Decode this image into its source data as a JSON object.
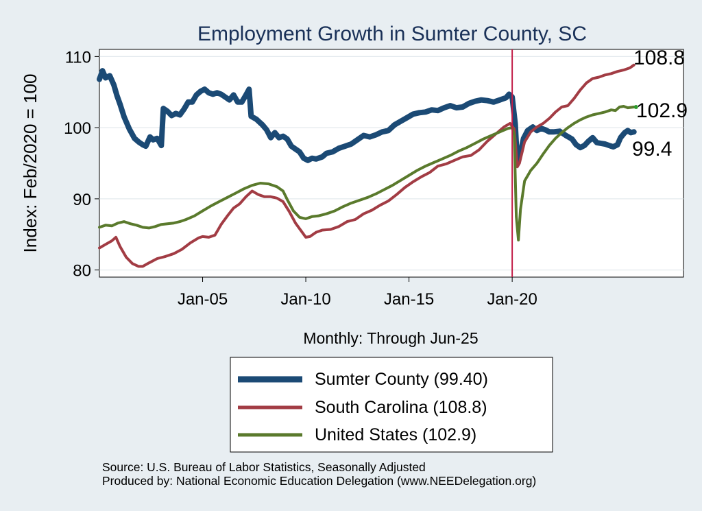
{
  "chart_data": {
    "type": "line",
    "title": "Employment Growth in Sumter  County, SC",
    "ylabel": "Index: Feb/2020 = 100",
    "xlabel": "Monthly: Through Jun-25",
    "ylim": [
      79,
      111
    ],
    "xlim": [
      2000.0,
      2028.3
    ],
    "yticks": [
      80,
      90,
      100,
      110
    ],
    "xticks": [
      {
        "label": "Jan-05",
        "value": 2005.0
      },
      {
        "label": "Jan-10",
        "value": 2010.0
      },
      {
        "label": "Jan-15",
        "value": 2015.0
      },
      {
        "label": "Jan-20",
        "value": 2020.0
      }
    ],
    "vline": 2020.0,
    "grid": true,
    "legend_position": "bottom",
    "end_labels": [
      "108.8",
      "102.9",
      "99.4"
    ],
    "series": [
      {
        "name": "Sumter  County (99.40)",
        "color": "#1b4a75",
        "width": 8,
        "points": [
          [
            2000.0,
            106.8
          ],
          [
            2000.15,
            108.0
          ],
          [
            2000.3,
            107.0
          ],
          [
            2000.5,
            107.3
          ],
          [
            2000.7,
            106.0
          ],
          [
            2000.85,
            104.5
          ],
          [
            2001.0,
            103.3
          ],
          [
            2001.2,
            101.5
          ],
          [
            2001.45,
            99.8
          ],
          [
            2001.7,
            98.5
          ],
          [
            2001.9,
            98.0
          ],
          [
            2002.1,
            97.6
          ],
          [
            2002.25,
            97.4
          ],
          [
            2002.45,
            98.7
          ],
          [
            2002.6,
            98.3
          ],
          [
            2002.8,
            98.5
          ],
          [
            2003.0,
            97.5
          ],
          [
            2003.1,
            102.7
          ],
          [
            2003.3,
            102.3
          ],
          [
            2003.5,
            101.7
          ],
          [
            2003.7,
            102.0
          ],
          [
            2003.9,
            101.8
          ],
          [
            2004.1,
            102.6
          ],
          [
            2004.3,
            103.6
          ],
          [
            2004.5,
            103.6
          ],
          [
            2004.7,
            104.6
          ],
          [
            2004.9,
            105.1
          ],
          [
            2005.1,
            105.4
          ],
          [
            2005.3,
            104.9
          ],
          [
            2005.5,
            104.7
          ],
          [
            2005.7,
            104.9
          ],
          [
            2005.9,
            104.7
          ],
          [
            2006.1,
            104.3
          ],
          [
            2006.3,
            103.9
          ],
          [
            2006.5,
            104.6
          ],
          [
            2006.7,
            103.6
          ],
          [
            2006.9,
            103.6
          ],
          [
            2007.1,
            104.6
          ],
          [
            2007.25,
            105.4
          ],
          [
            2007.35,
            101.6
          ],
          [
            2007.6,
            101.2
          ],
          [
            2007.9,
            100.4
          ],
          [
            2008.1,
            99.7
          ],
          [
            2008.3,
            98.6
          ],
          [
            2008.5,
            99.3
          ],
          [
            2008.7,
            98.6
          ],
          [
            2008.9,
            98.8
          ],
          [
            2009.1,
            98.4
          ],
          [
            2009.3,
            97.4
          ],
          [
            2009.5,
            97.0
          ],
          [
            2009.7,
            96.6
          ],
          [
            2009.9,
            95.7
          ],
          [
            2010.1,
            95.4
          ],
          [
            2010.3,
            95.7
          ],
          [
            2010.5,
            95.6
          ],
          [
            2010.8,
            95.9
          ],
          [
            2011.0,
            96.4
          ],
          [
            2011.3,
            96.6
          ],
          [
            2011.6,
            97.1
          ],
          [
            2011.9,
            97.4
          ],
          [
            2012.2,
            97.7
          ],
          [
            2012.5,
            98.3
          ],
          [
            2012.8,
            98.9
          ],
          [
            2013.1,
            98.7
          ],
          [
            2013.4,
            99.0
          ],
          [
            2013.7,
            99.4
          ],
          [
            2014.0,
            99.6
          ],
          [
            2014.3,
            100.4
          ],
          [
            2014.6,
            100.9
          ],
          [
            2014.9,
            101.4
          ],
          [
            2015.2,
            101.9
          ],
          [
            2015.5,
            102.1
          ],
          [
            2015.8,
            102.2
          ],
          [
            2016.1,
            102.5
          ],
          [
            2016.4,
            102.4
          ],
          [
            2016.7,
            102.8
          ],
          [
            2017.0,
            103.1
          ],
          [
            2017.3,
            102.8
          ],
          [
            2017.6,
            102.9
          ],
          [
            2017.9,
            103.4
          ],
          [
            2018.2,
            103.7
          ],
          [
            2018.5,
            103.9
          ],
          [
            2018.8,
            103.8
          ],
          [
            2019.1,
            103.6
          ],
          [
            2019.4,
            103.9
          ],
          [
            2019.7,
            104.2
          ],
          [
            2019.85,
            104.7
          ],
          [
            2020.0,
            104.3
          ],
          [
            2020.15,
            100.5
          ],
          [
            2020.25,
            95.0
          ],
          [
            2020.4,
            96.5
          ],
          [
            2020.55,
            98.5
          ],
          [
            2020.75,
            99.6
          ],
          [
            2021.0,
            100.1
          ],
          [
            2021.2,
            99.6
          ],
          [
            2021.4,
            99.9
          ],
          [
            2021.6,
            99.7
          ],
          [
            2021.8,
            99.4
          ],
          [
            2022.0,
            99.4
          ],
          [
            2022.3,
            99.5
          ],
          [
            2022.6,
            98.9
          ],
          [
            2022.9,
            98.4
          ],
          [
            2023.1,
            97.6
          ],
          [
            2023.3,
            97.2
          ],
          [
            2023.5,
            97.5
          ],
          [
            2023.7,
            98.1
          ],
          [
            2023.9,
            98.6
          ],
          [
            2024.1,
            97.9
          ],
          [
            2024.3,
            97.8
          ],
          [
            2024.5,
            97.7
          ],
          [
            2024.7,
            97.5
          ],
          [
            2024.9,
            97.3
          ],
          [
            2025.1,
            97.6
          ],
          [
            2025.25,
            98.6
          ],
          [
            2025.45,
            99.3
          ],
          [
            2025.6,
            99.6
          ],
          [
            2025.75,
            99.3
          ],
          [
            2025.9,
            99.4
          ]
        ]
      },
      {
        "name": "South Carolina (108.8)",
        "color": "#a23c44",
        "width": 4,
        "points": [
          [
            2000.0,
            83.1
          ],
          [
            2000.3,
            83.6
          ],
          [
            2000.6,
            84.1
          ],
          [
            2000.8,
            84.6
          ],
          [
            2001.0,
            83.3
          ],
          [
            2001.3,
            81.8
          ],
          [
            2001.6,
            80.9
          ],
          [
            2001.9,
            80.5
          ],
          [
            2002.1,
            80.5
          ],
          [
            2002.4,
            81.0
          ],
          [
            2002.8,
            81.6
          ],
          [
            2003.2,
            81.9
          ],
          [
            2003.6,
            82.3
          ],
          [
            2004.0,
            82.9
          ],
          [
            2004.4,
            83.8
          ],
          [
            2004.8,
            84.5
          ],
          [
            2005.0,
            84.7
          ],
          [
            2005.3,
            84.6
          ],
          [
            2005.6,
            84.9
          ],
          [
            2005.9,
            86.4
          ],
          [
            2006.2,
            87.6
          ],
          [
            2006.5,
            88.7
          ],
          [
            2006.8,
            89.3
          ],
          [
            2007.1,
            90.3
          ],
          [
            2007.4,
            91.1
          ],
          [
            2007.7,
            90.6
          ],
          [
            2008.0,
            90.3
          ],
          [
            2008.3,
            90.3
          ],
          [
            2008.6,
            90.1
          ],
          [
            2008.9,
            89.6
          ],
          [
            2009.2,
            88.2
          ],
          [
            2009.5,
            86.6
          ],
          [
            2009.8,
            85.4
          ],
          [
            2010.0,
            84.6
          ],
          [
            2010.2,
            84.7
          ],
          [
            2010.5,
            85.3
          ],
          [
            2010.8,
            85.6
          ],
          [
            2011.2,
            85.7
          ],
          [
            2011.6,
            86.1
          ],
          [
            2012.0,
            86.8
          ],
          [
            2012.4,
            87.1
          ],
          [
            2012.8,
            87.9
          ],
          [
            2013.2,
            88.4
          ],
          [
            2013.6,
            89.1
          ],
          [
            2014.0,
            89.7
          ],
          [
            2014.4,
            90.6
          ],
          [
            2014.8,
            91.6
          ],
          [
            2015.2,
            92.4
          ],
          [
            2015.6,
            93.1
          ],
          [
            2016.0,
            93.7
          ],
          [
            2016.4,
            94.6
          ],
          [
            2016.8,
            94.9
          ],
          [
            2017.2,
            95.4
          ],
          [
            2017.6,
            95.9
          ],
          [
            2018.0,
            96.1
          ],
          [
            2018.4,
            96.9
          ],
          [
            2018.8,
            98.1
          ],
          [
            2019.2,
            99.1
          ],
          [
            2019.6,
            100.1
          ],
          [
            2019.9,
            100.6
          ],
          [
            2020.1,
            99.8
          ],
          [
            2020.25,
            94.5
          ],
          [
            2020.35,
            95.0
          ],
          [
            2020.6,
            98.0
          ],
          [
            2020.9,
            99.4
          ],
          [
            2021.2,
            100.1
          ],
          [
            2021.5,
            100.6
          ],
          [
            2021.8,
            101.3
          ],
          [
            2022.1,
            102.2
          ],
          [
            2022.4,
            102.9
          ],
          [
            2022.7,
            103.1
          ],
          [
            2023.0,
            104.1
          ],
          [
            2023.3,
            105.3
          ],
          [
            2023.6,
            106.3
          ],
          [
            2023.9,
            106.9
          ],
          [
            2024.2,
            107.1
          ],
          [
            2024.5,
            107.4
          ],
          [
            2024.8,
            107.6
          ],
          [
            2025.1,
            107.9
          ],
          [
            2025.4,
            108.1
          ],
          [
            2025.7,
            108.4
          ],
          [
            2025.9,
            108.8
          ]
        ]
      },
      {
        "name": "United States (102.9)",
        "color": "#5a7a2c",
        "width": 4,
        "points": [
          [
            2000.0,
            86.0
          ],
          [
            2000.3,
            86.3
          ],
          [
            2000.6,
            86.2
          ],
          [
            2000.9,
            86.6
          ],
          [
            2001.2,
            86.8
          ],
          [
            2001.5,
            86.5
          ],
          [
            2001.8,
            86.3
          ],
          [
            2002.1,
            86.0
          ],
          [
            2002.4,
            85.9
          ],
          [
            2002.7,
            86.1
          ],
          [
            2003.0,
            86.4
          ],
          [
            2003.3,
            86.5
          ],
          [
            2003.6,
            86.6
          ],
          [
            2003.9,
            86.8
          ],
          [
            2004.2,
            87.1
          ],
          [
            2004.6,
            87.6
          ],
          [
            2005.0,
            88.3
          ],
          [
            2005.4,
            89.0
          ],
          [
            2005.8,
            89.6
          ],
          [
            2006.2,
            90.2
          ],
          [
            2006.6,
            90.8
          ],
          [
            2007.0,
            91.4
          ],
          [
            2007.4,
            91.9
          ],
          [
            2007.8,
            92.2
          ],
          [
            2008.2,
            92.1
          ],
          [
            2008.6,
            91.7
          ],
          [
            2008.9,
            91.1
          ],
          [
            2009.1,
            89.9
          ],
          [
            2009.4,
            88.3
          ],
          [
            2009.7,
            87.4
          ],
          [
            2010.0,
            87.2
          ],
          [
            2010.3,
            87.5
          ],
          [
            2010.6,
            87.6
          ],
          [
            2011.0,
            87.9
          ],
          [
            2011.4,
            88.3
          ],
          [
            2011.8,
            88.9
          ],
          [
            2012.2,
            89.4
          ],
          [
            2012.6,
            89.8
          ],
          [
            2013.0,
            90.2
          ],
          [
            2013.4,
            90.7
          ],
          [
            2013.8,
            91.3
          ],
          [
            2014.2,
            91.9
          ],
          [
            2014.6,
            92.6
          ],
          [
            2015.0,
            93.3
          ],
          [
            2015.4,
            94.0
          ],
          [
            2015.8,
            94.6
          ],
          [
            2016.2,
            95.1
          ],
          [
            2016.6,
            95.6
          ],
          [
            2017.0,
            96.1
          ],
          [
            2017.4,
            96.7
          ],
          [
            2017.8,
            97.2
          ],
          [
            2018.2,
            97.8
          ],
          [
            2018.6,
            98.4
          ],
          [
            2019.0,
            98.9
          ],
          [
            2019.4,
            99.4
          ],
          [
            2019.8,
            99.9
          ],
          [
            2020.0,
            100.0
          ],
          [
            2020.1,
            99.0
          ],
          [
            2020.2,
            87.5
          ],
          [
            2020.3,
            84.2
          ],
          [
            2020.4,
            88.5
          ],
          [
            2020.6,
            92.5
          ],
          [
            2020.9,
            94.0
          ],
          [
            2021.2,
            95.0
          ],
          [
            2021.5,
            96.3
          ],
          [
            2021.8,
            97.5
          ],
          [
            2022.1,
            98.5
          ],
          [
            2022.4,
            99.3
          ],
          [
            2022.7,
            100.0
          ],
          [
            2023.0,
            100.6
          ],
          [
            2023.3,
            101.1
          ],
          [
            2023.6,
            101.5
          ],
          [
            2023.9,
            101.8
          ],
          [
            2024.2,
            102.0
          ],
          [
            2024.5,
            102.2
          ],
          [
            2024.8,
            102.5
          ],
          [
            2025.0,
            102.4
          ],
          [
            2025.2,
            102.9
          ],
          [
            2025.4,
            103.0
          ],
          [
            2025.6,
            102.8
          ],
          [
            2025.9,
            102.9
          ]
        ]
      }
    ]
  },
  "footer": {
    "source": "Source: U.S. Bureau of Labor Statistics, Seasonally Adjusted",
    "produced": "Produced by: National Economic Education Delegation (www.NEEDelegation.org)"
  }
}
